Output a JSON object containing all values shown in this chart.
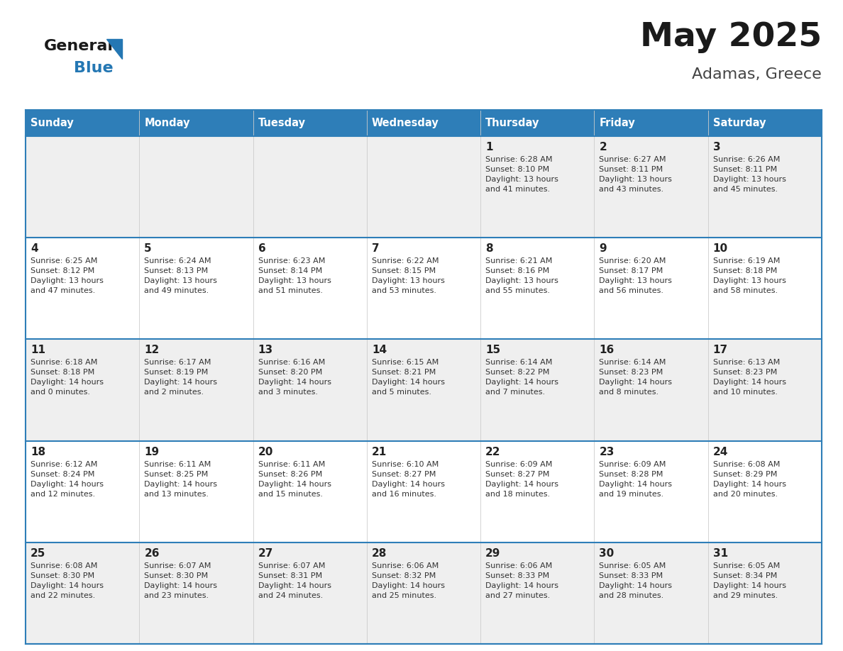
{
  "title": "May 2025",
  "subtitle": "Adamas, Greece",
  "days_of_week": [
    "Sunday",
    "Monday",
    "Tuesday",
    "Wednesday",
    "Thursday",
    "Friday",
    "Saturday"
  ],
  "header_bg": "#2E7EB8",
  "header_text": "#FFFFFF",
  "row_bg_odd": "#EFEFEF",
  "row_bg_even": "#FFFFFF",
  "cell_border_color": "#2E7EB8",
  "day_num_color": "#222222",
  "info_color": "#333333",
  "title_color": "#1A1A1A",
  "subtitle_color": "#444444",
  "logo_general_color": "#1A1A1A",
  "logo_blue_color": "#2477B3",
  "calendar_data": [
    [
      null,
      null,
      null,
      null,
      {
        "day": 1,
        "sunrise": "6:28 AM",
        "sunset": "8:10 PM",
        "daylight_h": "13 hours",
        "daylight_m": "and 41 minutes."
      },
      {
        "day": 2,
        "sunrise": "6:27 AM",
        "sunset": "8:11 PM",
        "daylight_h": "13 hours",
        "daylight_m": "and 43 minutes."
      },
      {
        "day": 3,
        "sunrise": "6:26 AM",
        "sunset": "8:11 PM",
        "daylight_h": "13 hours",
        "daylight_m": "and 45 minutes."
      }
    ],
    [
      {
        "day": 4,
        "sunrise": "6:25 AM",
        "sunset": "8:12 PM",
        "daylight_h": "13 hours",
        "daylight_m": "and 47 minutes."
      },
      {
        "day": 5,
        "sunrise": "6:24 AM",
        "sunset": "8:13 PM",
        "daylight_h": "13 hours",
        "daylight_m": "and 49 minutes."
      },
      {
        "day": 6,
        "sunrise": "6:23 AM",
        "sunset": "8:14 PM",
        "daylight_h": "13 hours",
        "daylight_m": "and 51 minutes."
      },
      {
        "day": 7,
        "sunrise": "6:22 AM",
        "sunset": "8:15 PM",
        "daylight_h": "13 hours",
        "daylight_m": "and 53 minutes."
      },
      {
        "day": 8,
        "sunrise": "6:21 AM",
        "sunset": "8:16 PM",
        "daylight_h": "13 hours",
        "daylight_m": "and 55 minutes."
      },
      {
        "day": 9,
        "sunrise": "6:20 AM",
        "sunset": "8:17 PM",
        "daylight_h": "13 hours",
        "daylight_m": "and 56 minutes."
      },
      {
        "day": 10,
        "sunrise": "6:19 AM",
        "sunset": "8:18 PM",
        "daylight_h": "13 hours",
        "daylight_m": "and 58 minutes."
      }
    ],
    [
      {
        "day": 11,
        "sunrise": "6:18 AM",
        "sunset": "8:18 PM",
        "daylight_h": "14 hours",
        "daylight_m": "and 0 minutes."
      },
      {
        "day": 12,
        "sunrise": "6:17 AM",
        "sunset": "8:19 PM",
        "daylight_h": "14 hours",
        "daylight_m": "and 2 minutes."
      },
      {
        "day": 13,
        "sunrise": "6:16 AM",
        "sunset": "8:20 PM",
        "daylight_h": "14 hours",
        "daylight_m": "and 3 minutes."
      },
      {
        "day": 14,
        "sunrise": "6:15 AM",
        "sunset": "8:21 PM",
        "daylight_h": "14 hours",
        "daylight_m": "and 5 minutes."
      },
      {
        "day": 15,
        "sunrise": "6:14 AM",
        "sunset": "8:22 PM",
        "daylight_h": "14 hours",
        "daylight_m": "and 7 minutes."
      },
      {
        "day": 16,
        "sunrise": "6:14 AM",
        "sunset": "8:23 PM",
        "daylight_h": "14 hours",
        "daylight_m": "and 8 minutes."
      },
      {
        "day": 17,
        "sunrise": "6:13 AM",
        "sunset": "8:23 PM",
        "daylight_h": "14 hours",
        "daylight_m": "and 10 minutes."
      }
    ],
    [
      {
        "day": 18,
        "sunrise": "6:12 AM",
        "sunset": "8:24 PM",
        "daylight_h": "14 hours",
        "daylight_m": "and 12 minutes."
      },
      {
        "day": 19,
        "sunrise": "6:11 AM",
        "sunset": "8:25 PM",
        "daylight_h": "14 hours",
        "daylight_m": "and 13 minutes."
      },
      {
        "day": 20,
        "sunrise": "6:11 AM",
        "sunset": "8:26 PM",
        "daylight_h": "14 hours",
        "daylight_m": "and 15 minutes."
      },
      {
        "day": 21,
        "sunrise": "6:10 AM",
        "sunset": "8:27 PM",
        "daylight_h": "14 hours",
        "daylight_m": "and 16 minutes."
      },
      {
        "day": 22,
        "sunrise": "6:09 AM",
        "sunset": "8:27 PM",
        "daylight_h": "14 hours",
        "daylight_m": "and 18 minutes."
      },
      {
        "day": 23,
        "sunrise": "6:09 AM",
        "sunset": "8:28 PM",
        "daylight_h": "14 hours",
        "daylight_m": "and 19 minutes."
      },
      {
        "day": 24,
        "sunrise": "6:08 AM",
        "sunset": "8:29 PM",
        "daylight_h": "14 hours",
        "daylight_m": "and 20 minutes."
      }
    ],
    [
      {
        "day": 25,
        "sunrise": "6:08 AM",
        "sunset": "8:30 PM",
        "daylight_h": "14 hours",
        "daylight_m": "and 22 minutes."
      },
      {
        "day": 26,
        "sunrise": "6:07 AM",
        "sunset": "8:30 PM",
        "daylight_h": "14 hours",
        "daylight_m": "and 23 minutes."
      },
      {
        "day": 27,
        "sunrise": "6:07 AM",
        "sunset": "8:31 PM",
        "daylight_h": "14 hours",
        "daylight_m": "and 24 minutes."
      },
      {
        "day": 28,
        "sunrise": "6:06 AM",
        "sunset": "8:32 PM",
        "daylight_h": "14 hours",
        "daylight_m": "and 25 minutes."
      },
      {
        "day": 29,
        "sunrise": "6:06 AM",
        "sunset": "8:33 PM",
        "daylight_h": "14 hours",
        "daylight_m": "and 27 minutes."
      },
      {
        "day": 30,
        "sunrise": "6:05 AM",
        "sunset": "8:33 PM",
        "daylight_h": "14 hours",
        "daylight_m": "and 28 minutes."
      },
      {
        "day": 31,
        "sunrise": "6:05 AM",
        "sunset": "8:34 PM",
        "daylight_h": "14 hours",
        "daylight_m": "and 29 minutes."
      }
    ]
  ]
}
